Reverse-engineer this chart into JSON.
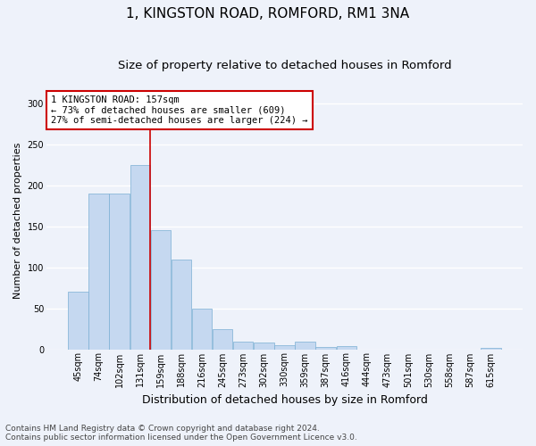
{
  "title": "1, KINGSTON ROAD, ROMFORD, RM1 3NA",
  "subtitle": "Size of property relative to detached houses in Romford",
  "xlabel": "Distribution of detached houses by size in Romford",
  "ylabel": "Number of detached properties",
  "categories": [
    "45sqm",
    "74sqm",
    "102sqm",
    "131sqm",
    "159sqm",
    "188sqm",
    "216sqm",
    "245sqm",
    "273sqm",
    "302sqm",
    "330sqm",
    "359sqm",
    "387sqm",
    "416sqm",
    "444sqm",
    "473sqm",
    "501sqm",
    "530sqm",
    "558sqm",
    "587sqm",
    "615sqm"
  ],
  "values": [
    70,
    190,
    190,
    225,
    145,
    110,
    50,
    25,
    9,
    8,
    5,
    9,
    3,
    4,
    0,
    0,
    0,
    0,
    0,
    0,
    2
  ],
  "bar_color": "#c5d8f0",
  "bar_edge_color": "#7bafd4",
  "vline_color": "#cc0000",
  "annotation_text": "1 KINGSTON ROAD: 157sqm\n← 73% of detached houses are smaller (609)\n27% of semi-detached houses are larger (224) →",
  "annotation_box_color": "#ffffff",
  "annotation_box_edge": "#cc0000",
  "ylim": [
    0,
    315
  ],
  "yticks": [
    0,
    50,
    100,
    150,
    200,
    250,
    300
  ],
  "fig_bg": "#eef2fa",
  "plot_bg": "#eef2fa",
  "grid_color": "#ffffff",
  "footer_line1": "Contains HM Land Registry data © Crown copyright and database right 2024.",
  "footer_line2": "Contains public sector information licensed under the Open Government Licence v3.0.",
  "title_fontsize": 11,
  "subtitle_fontsize": 9.5,
  "xlabel_fontsize": 9,
  "ylabel_fontsize": 8,
  "tick_fontsize": 7,
  "annotation_fontsize": 7.5,
  "footer_fontsize": 6.5,
  "vline_x_index": 3.5
}
